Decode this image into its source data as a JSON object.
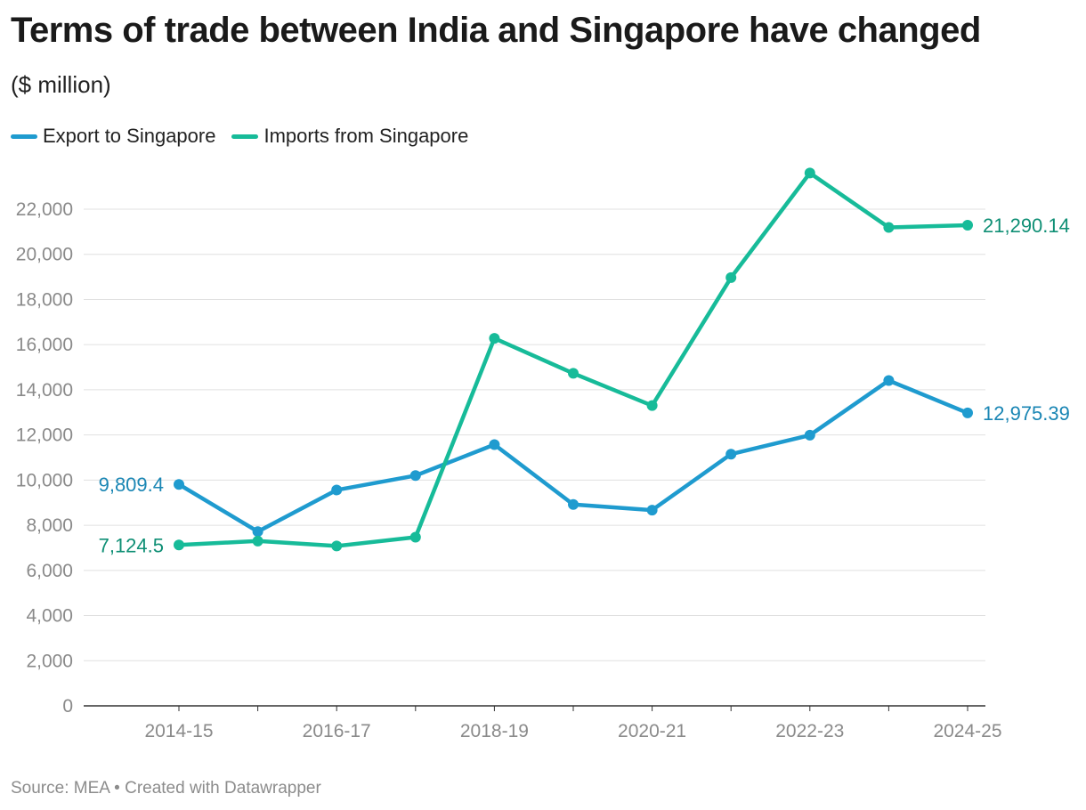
{
  "header": {
    "title": "Terms of trade between India and Singapore have changed",
    "subtitle": "($ million)"
  },
  "footer": {
    "source": "Source: MEA • Created with Datawrapper"
  },
  "colors": {
    "export": "#1f9bcf",
    "imports": "#17bb99",
    "export_label": "#1a86b4",
    "imports_label": "#0f8f75",
    "grid": "#e0e0e0",
    "tick": "#8a8a8a"
  },
  "chart_data": {
    "type": "line",
    "title": "Terms of trade between India and Singapore have changed",
    "subtitle": "($ million)",
    "x": [
      "2014-15",
      "2015-16",
      "2016-17",
      "2017-18",
      "2018-19",
      "2019-20",
      "2020-21",
      "2021-22",
      "2022-23",
      "2023-24",
      "2024-25"
    ],
    "x_tick_labels": [
      "2014-15",
      "2016-17",
      "2018-19",
      "2020-21",
      "2022-23",
      "2024-25"
    ],
    "y_ticks": [
      "0",
      "2,000",
      "4,000",
      "6,000",
      "8,000",
      "10,000",
      "12,000",
      "14,000",
      "16,000",
      "18,000",
      "20,000",
      "22,000"
    ],
    "ylim": [
      0,
      23500
    ],
    "grid": true,
    "legend_position": "top-left",
    "series": [
      {
        "name": "Export to Singapore",
        "values": [
          9809.4,
          7720,
          9560,
          10200,
          11570,
          8920,
          8670,
          11150,
          11990,
          14410,
          12975.39
        ],
        "start_label": "9,809.4",
        "end_label": "12,975.39"
      },
      {
        "name": "Imports from Singapore",
        "values": [
          7124.5,
          7300,
          7080,
          7470,
          16280,
          14730,
          13300,
          18970,
          23600,
          21190,
          21290.14
        ],
        "start_label": "7,124.5",
        "end_label": "21,290.14"
      }
    ]
  }
}
